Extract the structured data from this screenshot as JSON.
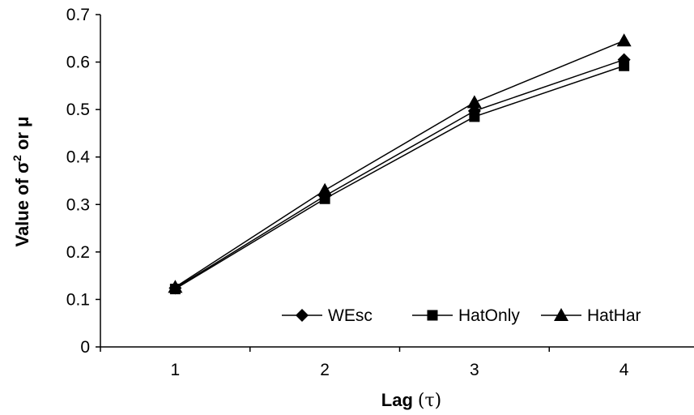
{
  "chart_data": {
    "type": "line",
    "title": "",
    "xlabel_main": "Lag",
    "xlabel_symbol": "(τ)",
    "ylabel_main": "Value of ",
    "ylabel_sigma": "σ",
    "ylabel_exp": "2",
    "ylabel_tail": " or μ",
    "categories": [
      "1",
      "2",
      "3",
      "4"
    ],
    "ylim": [
      0,
      0.7
    ],
    "yticks": [
      0,
      0.1,
      0.2,
      0.3,
      0.4,
      0.5,
      0.6,
      0.7
    ],
    "ytick_labels": [
      "0",
      "0.1",
      "0.2",
      "0.3",
      "0.4",
      "0.5",
      "0.6",
      "0.7"
    ],
    "grid": false,
    "legend_position": "bottom-right",
    "series": [
      {
        "name": "WEsc",
        "marker": "diamond",
        "values": [
          0.124,
          0.318,
          0.497,
          0.605
        ]
      },
      {
        "name": "HatOnly",
        "marker": "square",
        "values": [
          0.122,
          0.312,
          0.485,
          0.592
        ]
      },
      {
        "name": "HatHar",
        "marker": "triangle",
        "values": [
          0.126,
          0.33,
          0.515,
          0.645
        ]
      }
    ],
    "line_color": "#000000",
    "marker_color": "#000000"
  }
}
